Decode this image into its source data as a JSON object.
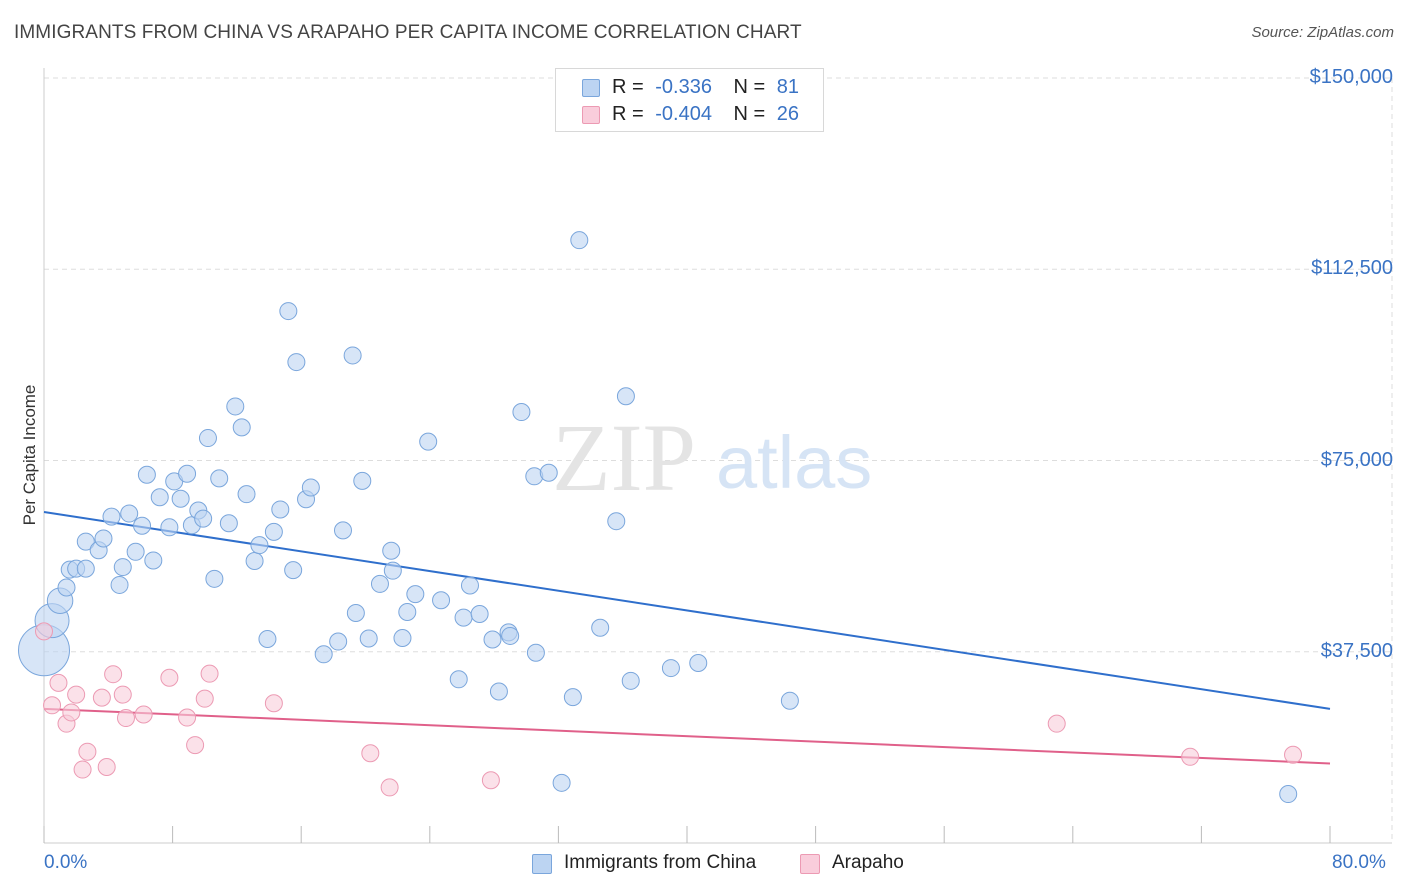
{
  "title": "IMMIGRANTS FROM CHINA VS ARAPAHO PER CAPITA INCOME CORRELATION CHART",
  "source": "Source: ZipAtlas.com",
  "watermark": {
    "zip": "ZIP",
    "atlas": "atlas"
  },
  "legend_stats": {
    "china": {
      "r_label": "R =",
      "r_value": "-0.336",
      "n_label": "N =",
      "n_value": "81"
    },
    "arapaho": {
      "r_label": "R =",
      "r_value": "-0.404",
      "n_label": "N =",
      "n_value": "26"
    }
  },
  "colors": {
    "china_fill": "#bcd4f2",
    "china_stroke": "#7aa6dc",
    "china_line": "#2f6fcc",
    "arapaho_fill": "#f9cddb",
    "arapaho_stroke": "#ec9ab3",
    "arapaho_line": "#e0608a",
    "axis_label": "#3a73c4",
    "grid": "#dddddd"
  },
  "chart_data": {
    "type": "scatter",
    "title": "IMMIGRANTS FROM CHINA VS ARAPAHO PER CAPITA INCOME CORRELATION CHART",
    "xlabel": "",
    "ylabel": "Per Capita Income",
    "xlim": [
      0,
      80
    ],
    "ylim": [
      0,
      155000
    ],
    "x_tick_labels": [
      "0.0%",
      "80.0%"
    ],
    "y_ticks": [
      37500,
      75000,
      112500,
      150000
    ],
    "y_tick_labels": [
      "$37,500",
      "$75,000",
      "$112,500",
      "$150,000"
    ],
    "series": [
      {
        "name": "Immigrants from China",
        "r": -0.336,
        "n": 81,
        "trend": {
          "x": [
            0,
            80
          ],
          "y": [
            64900,
            26300
          ]
        },
        "points": [
          {
            "x": 0.0,
            "y": 37800,
            "s": 3
          },
          {
            "x": 0.5,
            "y": 43600,
            "s": 2
          },
          {
            "x": 1.0,
            "y": 47500,
            "s": 1.5
          },
          {
            "x": 1.4,
            "y": 50100,
            "s": 1
          },
          {
            "x": 1.6,
            "y": 53600,
            "s": 1
          },
          {
            "x": 2.0,
            "y": 53800,
            "s": 1
          },
          {
            "x": 2.6,
            "y": 53800,
            "s": 1
          },
          {
            "x": 2.6,
            "y": 59100,
            "s": 1
          },
          {
            "x": 3.4,
            "y": 57400,
            "s": 1
          },
          {
            "x": 3.7,
            "y": 59700,
            "s": 1
          },
          {
            "x": 4.2,
            "y": 64000,
            "s": 1
          },
          {
            "x": 4.7,
            "y": 50600,
            "s": 1
          },
          {
            "x": 4.9,
            "y": 54100,
            "s": 1
          },
          {
            "x": 5.3,
            "y": 64600,
            "s": 1
          },
          {
            "x": 5.7,
            "y": 57100,
            "s": 1
          },
          {
            "x": 6.1,
            "y": 62200,
            "s": 1
          },
          {
            "x": 6.4,
            "y": 72200,
            "s": 1
          },
          {
            "x": 6.8,
            "y": 55400,
            "s": 1
          },
          {
            "x": 7.2,
            "y": 67800,
            "s": 1
          },
          {
            "x": 7.8,
            "y": 61900,
            "s": 1
          },
          {
            "x": 8.1,
            "y": 70900,
            "s": 1
          },
          {
            "x": 8.5,
            "y": 67500,
            "s": 1
          },
          {
            "x": 8.9,
            "y": 72400,
            "s": 1
          },
          {
            "x": 9.2,
            "y": 62300,
            "s": 1
          },
          {
            "x": 9.6,
            "y": 65200,
            "s": 1
          },
          {
            "x": 9.9,
            "y": 63600,
            "s": 1
          },
          {
            "x": 10.2,
            "y": 79400,
            "s": 1
          },
          {
            "x": 10.6,
            "y": 51800,
            "s": 1
          },
          {
            "x": 10.9,
            "y": 71500,
            "s": 1
          },
          {
            "x": 11.5,
            "y": 62700,
            "s": 1
          },
          {
            "x": 11.9,
            "y": 85600,
            "s": 1
          },
          {
            "x": 12.3,
            "y": 81500,
            "s": 1
          },
          {
            "x": 12.6,
            "y": 68400,
            "s": 1
          },
          {
            "x": 13.1,
            "y": 55300,
            "s": 1
          },
          {
            "x": 13.4,
            "y": 58400,
            "s": 1
          },
          {
            "x": 13.9,
            "y": 40000,
            "s": 1
          },
          {
            "x": 14.3,
            "y": 61000,
            "s": 1
          },
          {
            "x": 14.7,
            "y": 65400,
            "s": 1
          },
          {
            "x": 15.2,
            "y": 104300,
            "s": 1
          },
          {
            "x": 15.5,
            "y": 53500,
            "s": 1
          },
          {
            "x": 15.7,
            "y": 94300,
            "s": 1
          },
          {
            "x": 16.3,
            "y": 67400,
            "s": 1
          },
          {
            "x": 16.6,
            "y": 69700,
            "s": 1
          },
          {
            "x": 17.4,
            "y": 37000,
            "s": 1
          },
          {
            "x": 18.3,
            "y": 39500,
            "s": 1
          },
          {
            "x": 18.6,
            "y": 61300,
            "s": 1
          },
          {
            "x": 19.2,
            "y": 95600,
            "s": 1
          },
          {
            "x": 19.4,
            "y": 45100,
            "s": 1
          },
          {
            "x": 19.8,
            "y": 71000,
            "s": 1
          },
          {
            "x": 20.2,
            "y": 40100,
            "s": 1
          },
          {
            "x": 20.9,
            "y": 50800,
            "s": 1
          },
          {
            "x": 21.6,
            "y": 57300,
            "s": 1
          },
          {
            "x": 21.7,
            "y": 53400,
            "s": 1
          },
          {
            "x": 22.3,
            "y": 40200,
            "s": 1
          },
          {
            "x": 22.6,
            "y": 45300,
            "s": 1
          },
          {
            "x": 23.1,
            "y": 48800,
            "s": 1
          },
          {
            "x": 23.9,
            "y": 78700,
            "s": 1
          },
          {
            "x": 24.7,
            "y": 47600,
            "s": 1
          },
          {
            "x": 25.8,
            "y": 32100,
            "s": 1
          },
          {
            "x": 26.1,
            "y": 44200,
            "s": 1
          },
          {
            "x": 26.5,
            "y": 50500,
            "s": 1
          },
          {
            "x": 27.1,
            "y": 44900,
            "s": 1
          },
          {
            "x": 27.9,
            "y": 39900,
            "s": 1
          },
          {
            "x": 28.3,
            "y": 29700,
            "s": 1
          },
          {
            "x": 28.9,
            "y": 41300,
            "s": 1
          },
          {
            "x": 29.0,
            "y": 40600,
            "s": 1
          },
          {
            "x": 29.7,
            "y": 84500,
            "s": 1
          },
          {
            "x": 30.5,
            "y": 71900,
            "s": 1
          },
          {
            "x": 30.6,
            "y": 37300,
            "s": 1
          },
          {
            "x": 31.4,
            "y": 72600,
            "s": 1
          },
          {
            "x": 32.2,
            "y": 11800,
            "s": 1
          },
          {
            "x": 32.9,
            "y": 28600,
            "s": 1
          },
          {
            "x": 33.3,
            "y": 118200,
            "s": 1
          },
          {
            "x": 34.6,
            "y": 42200,
            "s": 1
          },
          {
            "x": 35.6,
            "y": 63100,
            "s": 1
          },
          {
            "x": 36.2,
            "y": 87600,
            "s": 1
          },
          {
            "x": 36.5,
            "y": 31800,
            "s": 1
          },
          {
            "x": 39.0,
            "y": 34300,
            "s": 1
          },
          {
            "x": 40.7,
            "y": 35300,
            "s": 1
          },
          {
            "x": 46.4,
            "y": 27900,
            "s": 1
          },
          {
            "x": 77.4,
            "y": 9600,
            "s": 1
          }
        ]
      },
      {
        "name": "Arapaho",
        "r": -0.404,
        "n": 26,
        "trend": {
          "x": [
            0,
            80
          ],
          "y": [
            26300,
            15600
          ]
        },
        "points": [
          {
            "x": 0.0,
            "y": 41500
          },
          {
            "x": 0.5,
            "y": 27000
          },
          {
            "x": 0.9,
            "y": 31400
          },
          {
            "x": 1.4,
            "y": 23400
          },
          {
            "x": 1.7,
            "y": 25600
          },
          {
            "x": 2.0,
            "y": 29100
          },
          {
            "x": 2.4,
            "y": 14400
          },
          {
            "x": 2.7,
            "y": 17900
          },
          {
            "x": 3.6,
            "y": 28500
          },
          {
            "x": 3.9,
            "y": 14900
          },
          {
            "x": 4.3,
            "y": 33100
          },
          {
            "x": 4.9,
            "y": 29100
          },
          {
            "x": 5.1,
            "y": 24500
          },
          {
            "x": 6.2,
            "y": 25200
          },
          {
            "x": 7.8,
            "y": 32400
          },
          {
            "x": 8.9,
            "y": 24600
          },
          {
            "x": 9.4,
            "y": 19200
          },
          {
            "x": 10.0,
            "y": 28300
          },
          {
            "x": 10.3,
            "y": 33200
          },
          {
            "x": 14.3,
            "y": 27400
          },
          {
            "x": 20.3,
            "y": 17600
          },
          {
            "x": 21.5,
            "y": 10900
          },
          {
            "x": 27.8,
            "y": 12300
          },
          {
            "x": 63.0,
            "y": 23400
          },
          {
            "x": 71.3,
            "y": 16900
          },
          {
            "x": 77.7,
            "y": 17300
          }
        ]
      }
    ]
  }
}
